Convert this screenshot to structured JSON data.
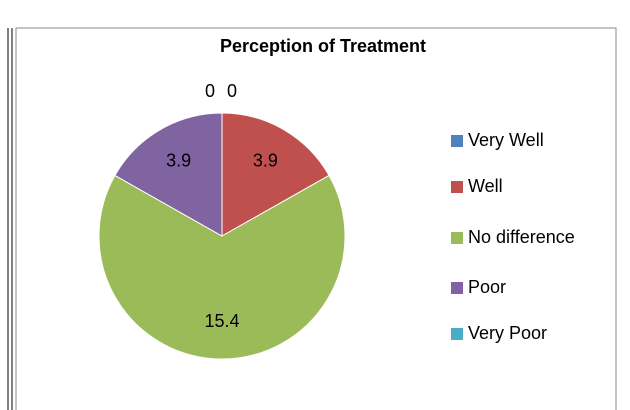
{
  "chart_data": {
    "type": "pie",
    "title": "Perception of Treatment",
    "categories": [
      "Very Well",
      "Well",
      "No difference",
      "Poor",
      "Very Poor"
    ],
    "values": [
      0,
      3.9,
      15.4,
      3.9,
      0
    ],
    "colors": [
      "#4f81bd",
      "#c0504d",
      "#9bbb59",
      "#8064a2",
      "#4bacc6"
    ],
    "legend": "right"
  }
}
